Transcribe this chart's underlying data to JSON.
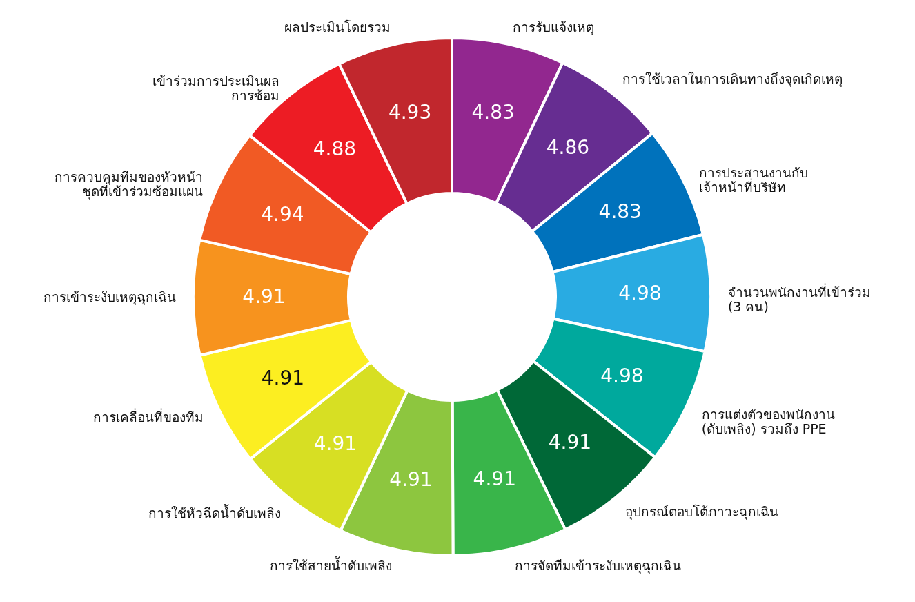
{
  "chart_data": {
    "type": "donut",
    "categories": [
      "การรับแจ้งเหตุ",
      "การใช้เวลาในการเดินทางถึงจุดเกิดเหตุ",
      "การประสานงานกับ\nเจ้าหน้าที่บริษัท",
      "จำนวนพนักงานที่เข้าร่วม\n(3 คน)",
      "การแต่งตัวของพนักงาน\n(ดับเพลิง) รวมถึง PPE",
      "อุปกรณ์ตอบโต้ภาวะฉุกเฉิน",
      "การจัดทีมเข้าระงับเหตุฉุกเฉิน",
      "การใช้สายน้ำดับเพลิง",
      "การใช้หัวฉีดน้ำดับเพลิง",
      "การเคลื่อนที่ของทีม",
      "การเข้าระงับเหตุฉุกเฉิน",
      "การควบคุมทีมของหัวหน้า\nชุดที่เข้าร่วมซ้อมแผน",
      "เข้าร่วมการประเมินผล\nการซ้อม",
      "ผลประเมินโดยรวม"
    ],
    "values": [
      4.83,
      4.86,
      4.83,
      4.98,
      4.98,
      4.91,
      4.91,
      4.91,
      4.91,
      4.91,
      4.91,
      4.94,
      4.88,
      4.93
    ],
    "colors": [
      "#92278f",
      "#662d91",
      "#0072bc",
      "#29abe2",
      "#00a99d",
      "#006837",
      "#39b54a",
      "#8dc63f",
      "#d7df23",
      "#fcee21",
      "#f7931e",
      "#f15a24",
      "#ed1c24",
      "#c1272d"
    ],
    "data_labels": true
  }
}
